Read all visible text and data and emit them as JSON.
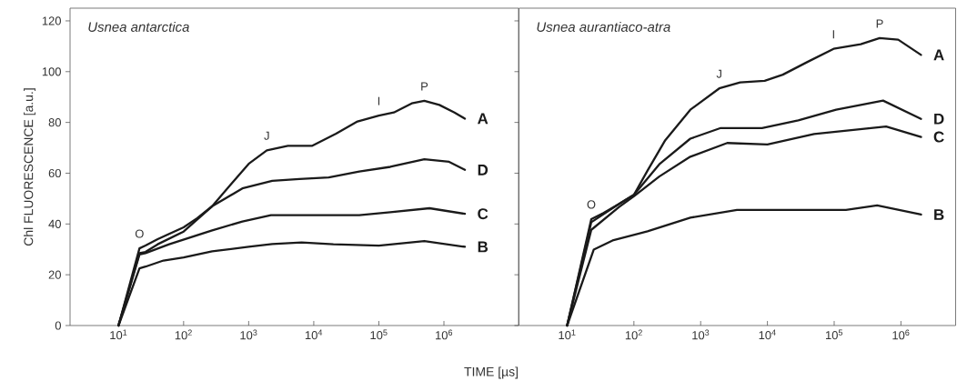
{
  "chart_data": [
    {
      "type": "line",
      "title": "Usnea antarctica",
      "xlabel": "TIME [µs]",
      "ylabel": "Chl FLUORESCENCE [a.u.]",
      "log": "x",
      "xlim": [
        1.8,
        14000000
      ],
      "ylim": [
        0,
        125
      ],
      "xticks": [
        {
          "value": 10,
          "label": "10$^{1}$"
        },
        {
          "value": 100,
          "label": "10$^{2}$"
        },
        {
          "value": 1000,
          "label": "10$^{3}$"
        },
        {
          "value": 10000,
          "label": "10$^{4}$"
        },
        {
          "value": 100000,
          "label": "10$^{5}$"
        },
        {
          "value": 1000000,
          "label": "10$^{6}$"
        }
      ],
      "yticks": [
        0,
        20,
        40,
        60,
        80,
        100,
        120
      ],
      "series": [
        {
          "name": "A",
          "color": "#1a1a1a",
          "x": [
            10,
            21,
            26,
            40,
            100,
            162,
            275,
            525,
            1000,
            1900,
            4000,
            9500,
            22000,
            47000,
            100000,
            170000,
            320000,
            500000,
            850000,
            1450000,
            2100000
          ],
          "values": [
            0,
            30.4,
            31.5,
            34,
            38.7,
            42.3,
            47,
            55.4,
            63.7,
            69,
            70.8,
            70.8,
            75.6,
            80.4,
            82.7,
            83.9,
            87.5,
            88.5,
            86.9,
            83.9,
            81.5
          ]
        },
        {
          "name": "D",
          "color": "#1a1a1a",
          "x": [
            10,
            21,
            26,
            40,
            100,
            275,
            800,
            2300,
            6000,
            17000,
            50000,
            150000,
            500000,
            1200000,
            2100000
          ],
          "values": [
            0,
            28.5,
            29,
            32,
            37,
            47,
            54,
            57,
            57.7,
            58.3,
            60.7,
            62.5,
            65.5,
            64.5,
            61.3
          ]
        },
        {
          "name": "C",
          "color": "#1a1a1a",
          "x": [
            10,
            21,
            26,
            60,
            275,
            800,
            2200,
            11000,
            50000,
            150000,
            600000,
            2100000
          ],
          "values": [
            0,
            28,
            28.5,
            32,
            37.5,
            41,
            43.5,
            43.5,
            43.5,
            44.6,
            46.2,
            44
          ]
        },
        {
          "name": "B",
          "color": "#1a1a1a",
          "x": [
            10,
            21,
            26,
            49,
            100,
            275,
            1000,
            2300,
            6500,
            20000,
            100000,
            500000,
            2100000
          ],
          "values": [
            0,
            22.5,
            23.2,
            25.6,
            26.8,
            29.2,
            31,
            32.1,
            32.7,
            32,
            31.5,
            33.3,
            31
          ]
        }
      ],
      "annotations": [
        {
          "text": "O",
          "x": 21,
          "y": 30.4
        },
        {
          "text": "J",
          "x": 1900,
          "y": 69
        },
        {
          "text": "I",
          "x": 100000,
          "y": 82.7
        },
        {
          "text": "P",
          "x": 500000,
          "y": 88.5
        }
      ]
    },
    {
      "type": "line",
      "title": "Usnea aurantiaco-atra",
      "log": "x",
      "tick_labels": "x",
      "xlim": [
        1.9,
        6600000
      ],
      "ylim": [
        0,
        125
      ],
      "xticks": [
        {
          "value": 10,
          "label": "10$^{1}$"
        },
        {
          "value": 100,
          "label": "10$^{2}$"
        },
        {
          "value": 1000,
          "label": "10$^{3}$"
        },
        {
          "value": 10000,
          "label": "10$^{4}$"
        },
        {
          "value": 100000,
          "label": "10$^{5}$"
        },
        {
          "value": 1000000,
          "label": "10$^{6}$"
        }
      ],
      "yticks": [
        0,
        20,
        40,
        60,
        80,
        100,
        120
      ],
      "series": [
        {
          "name": "A",
          "color": "#1a1a1a",
          "x": [
            10,
            23,
            35,
            60,
            100,
            160,
            295,
            700,
            1900,
            3900,
            9100,
            17000,
            41000,
            98000,
            250000,
            480000,
            910000,
            2000000
          ],
          "values": [
            0,
            41.9,
            44.3,
            47.9,
            51.5,
            61,
            73,
            85,
            93.4,
            95.8,
            96.4,
            98.8,
            104,
            109,
            110.8,
            113.2,
            112.6,
            106.6
          ]
        },
        {
          "name": "D",
          "color": "#1a1a1a",
          "x": [
            10,
            23,
            60,
            100,
            240,
            700,
            2000,
            8300,
            29000,
            107000,
            540000,
            2000000
          ],
          "values": [
            0,
            40.7,
            47.9,
            51.5,
            63.5,
            73.6,
            77.8,
            77.8,
            80.8,
            85,
            88.6,
            81.4
          ]
        },
        {
          "name": "C",
          "color": "#1a1a1a",
          "x": [
            10,
            23,
            60,
            100,
            240,
            700,
            2500,
            10000,
            50000,
            600000,
            2000000
          ],
          "values": [
            0,
            37.7,
            46.7,
            50.9,
            58.7,
            66.5,
            71.9,
            71.3,
            75.4,
            78.4,
            74.3
          ]
        },
        {
          "name": "B",
          "color": "#1a1a1a",
          "x": [
            10,
            25,
            48,
            160,
            700,
            3500,
            17000,
            150000,
            440000,
            2000000
          ],
          "values": [
            0,
            29.9,
            33.5,
            37.1,
            42.5,
            45.5,
            45.5,
            45.5,
            47.3,
            43.7
          ]
        }
      ],
      "annotations": [
        {
          "text": "O",
          "x": 23,
          "y": 41.9
        },
        {
          "text": "J",
          "x": 1900,
          "y": 93.4
        },
        {
          "text": "I",
          "x": 98000,
          "y": 109
        },
        {
          "text": "P",
          "x": 480000,
          "y": 113.2
        }
      ]
    }
  ]
}
